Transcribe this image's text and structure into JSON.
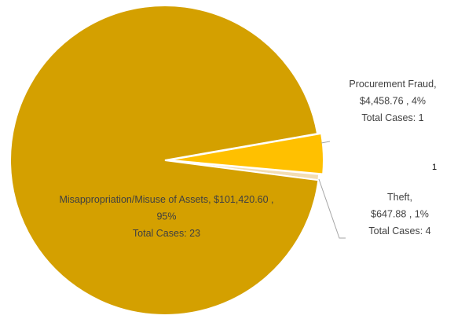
{
  "chart_data": {
    "type": "pie",
    "values": [
      4458.76,
      647.88,
      101420.6
    ],
    "colors": [
      "#ffc000",
      "#f3ddb2",
      "#d4a000"
    ],
    "data_labels": [
      [
        "Procurement Fraud,",
        "$4,458.76 , 4%",
        "Total Cases: 1"
      ],
      [
        "Theft,",
        "$647.88 , 1%",
        "Total Cases: 4"
      ],
      [
        "Misappropriation/Misuse of Assets,  $101,420.60 ,",
        "95%",
        "Total Cases: 23"
      ]
    ],
    "exploded": [
      true,
      false,
      false
    ],
    "annotation": "1"
  }
}
